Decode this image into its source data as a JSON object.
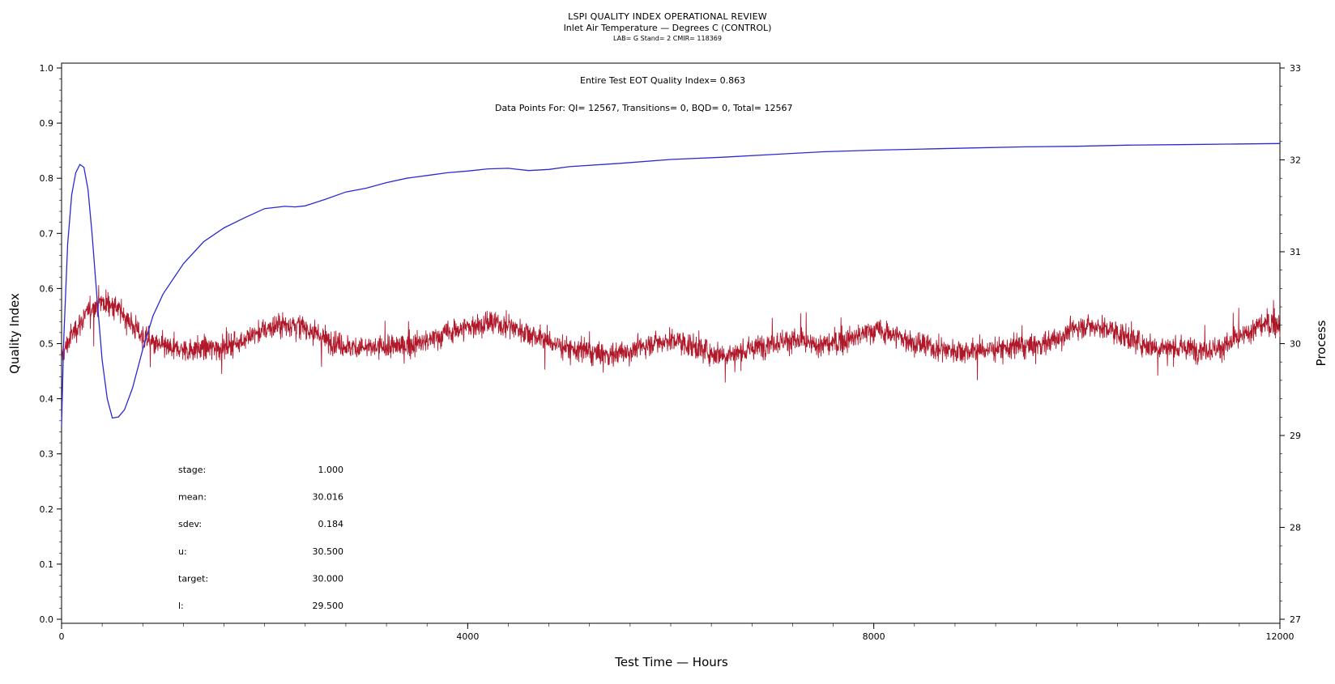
{
  "header": {
    "title": "LSPI QUALITY INDEX OPERATIONAL REVIEW",
    "subtitle": "Inlet Air Temperature — Degrees C (CONTROL)",
    "meta": "LAB= G Stand= 2 CMIR= 118369"
  },
  "annotations": {
    "eot": "Entire Test EOT Quality Index=   0.863",
    "datapoints": "Data Points For: QI= 12567, Transitions=      0, BQD=      0, Total= 12567"
  },
  "stats": [
    {
      "label": "stage:",
      "value": "1.000"
    },
    {
      "label": "mean:",
      "value": "30.016"
    },
    {
      "label": "sdev:",
      "value": "0.184"
    },
    {
      "label": "u:",
      "value": "30.500"
    },
    {
      "label": "target:",
      "value": "30.000"
    },
    {
      "label": "l:",
      "value": "29.500"
    }
  ],
  "colors": {
    "quality_index": "#2a2ad4",
    "process": "#b0182a",
    "axis": "#000000"
  },
  "chart_data": {
    "type": "line",
    "title": "LSPI QUALITY INDEX OPERATIONAL REVIEW",
    "xlabel": "Test Time — Hours",
    "ylabel": "Quality Index",
    "y2label": "Process",
    "xlim": [
      0,
      12000
    ],
    "ylim": [
      0.0,
      1.0
    ],
    "y2lim": [
      27,
      33
    ],
    "x_ticks": [
      0,
      4000,
      8000,
      12000
    ],
    "y_ticks": [
      "0.0",
      "0.1",
      "0.2",
      "0.3",
      "0.4",
      "0.5",
      "0.6",
      "0.7",
      "0.8",
      "0.9",
      "1.0"
    ],
    "y2_ticks": [
      "27",
      "28",
      "29",
      "30",
      "31",
      "32",
      "33"
    ],
    "grid": false,
    "series": [
      {
        "axis": "left",
        "color": "#2a2ad4",
        "x": [
          0,
          20,
          60,
          100,
          140,
          180,
          220,
          260,
          300,
          350,
          400,
          450,
          500,
          560,
          620,
          700,
          800,
          900,
          1000,
          1200,
          1400,
          1600,
          1800,
          2000,
          2200,
          2300,
          2400,
          2600,
          2800,
          3000,
          3200,
          3400,
          3600,
          3800,
          4000,
          4200,
          4400,
          4600,
          4800,
          5000,
          5500,
          6000,
          6500,
          7000,
          7500,
          8000,
          8500,
          9000,
          9500,
          10000,
          10500,
          11000,
          11500,
          12000
        ],
        "values": [
          0.35,
          0.5,
          0.68,
          0.77,
          0.81,
          0.825,
          0.82,
          0.78,
          0.7,
          0.58,
          0.47,
          0.4,
          0.365,
          0.367,
          0.38,
          0.42,
          0.49,
          0.55,
          0.59,
          0.645,
          0.685,
          0.71,
          0.728,
          0.745,
          0.749,
          0.748,
          0.75,
          0.762,
          0.775,
          0.782,
          0.792,
          0.8,
          0.805,
          0.81,
          0.813,
          0.817,
          0.818,
          0.814,
          0.816,
          0.821,
          0.827,
          0.834,
          0.838,
          0.843,
          0.848,
          0.851,
          0.853,
          0.855,
          0.857,
          0.858,
          0.86,
          0.861,
          0.862,
          0.863
        ]
      },
      {
        "axis": "right",
        "color": "#b0182a",
        "x": [
          0,
          100,
          200,
          300,
          400,
          500,
          600,
          700,
          800,
          900,
          1000,
          1200,
          1400,
          1600,
          1800,
          2000,
          2200,
          2400,
          2600,
          2800,
          3000,
          3200,
          3400,
          3600,
          3800,
          4000,
          4200,
          4400,
          4600,
          4800,
          5000,
          5200,
          5400,
          5600,
          5800,
          6000,
          6200,
          6400,
          6600,
          6800,
          7000,
          7200,
          7400,
          7600,
          7800,
          8000,
          8200,
          8400,
          8600,
          8800,
          9000,
          9200,
          9400,
          9600,
          9800,
          10000,
          10200,
          10400,
          10600,
          10800,
          11000,
          11200,
          11400,
          11600,
          11800,
          12000
        ],
        "values": [
          29.85,
          30.1,
          30.25,
          30.4,
          30.45,
          30.42,
          30.33,
          30.2,
          30.08,
          30.0,
          29.96,
          29.93,
          29.95,
          29.96,
          30.05,
          30.15,
          30.22,
          30.18,
          30.05,
          29.97,
          29.95,
          29.96,
          29.98,
          30.02,
          30.12,
          30.18,
          30.22,
          30.2,
          30.12,
          30.02,
          29.95,
          29.9,
          29.88,
          29.92,
          30.0,
          30.05,
          29.98,
          29.9,
          29.88,
          29.94,
          30.02,
          30.04,
          29.98,
          30.0,
          30.06,
          30.15,
          30.1,
          30.0,
          29.95,
          29.93,
          29.92,
          29.95,
          29.96,
          29.98,
          30.05,
          30.18,
          30.2,
          30.12,
          30.02,
          29.96,
          29.95,
          29.94,
          29.95,
          30.05,
          30.2,
          30.22
        ]
      }
    ]
  }
}
